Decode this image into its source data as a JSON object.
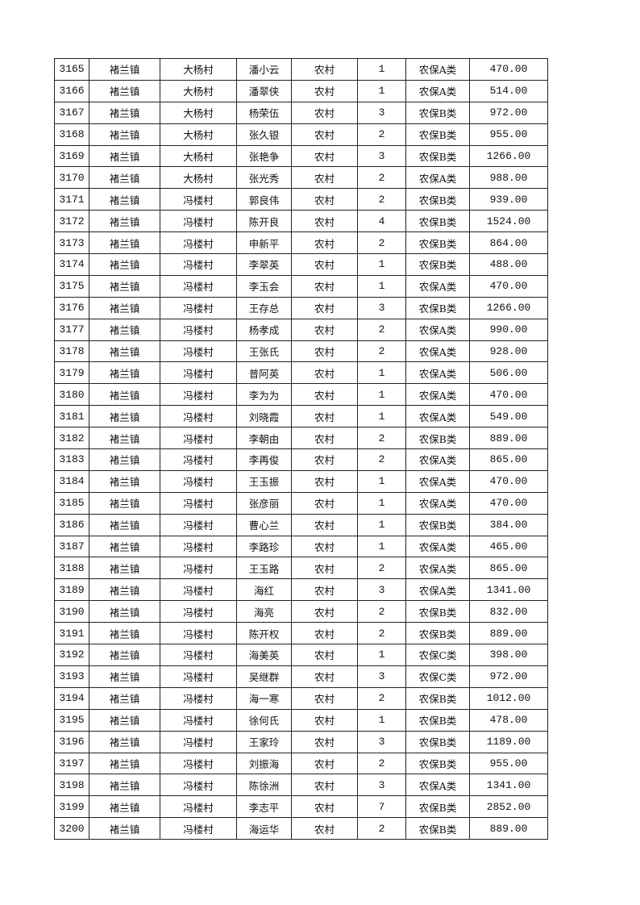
{
  "rows": [
    [
      "3165",
      "褚兰镇",
      "大杨村",
      "潘小云",
      "农村",
      "1",
      "农保A类",
      "470.00"
    ],
    [
      "3166",
      "褚兰镇",
      "大杨村",
      "潘翠侠",
      "农村",
      "1",
      "农保A类",
      "514.00"
    ],
    [
      "3167",
      "褚兰镇",
      "大杨村",
      "杨荣伍",
      "农村",
      "3",
      "农保B类",
      "972.00"
    ],
    [
      "3168",
      "褚兰镇",
      "大杨村",
      "张久银",
      "农村",
      "2",
      "农保B类",
      "955.00"
    ],
    [
      "3169",
      "褚兰镇",
      "大杨村",
      "张艳争",
      "农村",
      "3",
      "农保B类",
      "1266.00"
    ],
    [
      "3170",
      "褚兰镇",
      "大杨村",
      "张光秀",
      "农村",
      "2",
      "农保A类",
      "988.00"
    ],
    [
      "3171",
      "褚兰镇",
      "冯楼村",
      "郭良伟",
      "农村",
      "2",
      "农保B类",
      "939.00"
    ],
    [
      "3172",
      "褚兰镇",
      "冯楼村",
      "陈开良",
      "农村",
      "4",
      "农保B类",
      "1524.00"
    ],
    [
      "3173",
      "褚兰镇",
      "冯楼村",
      "申新平",
      "农村",
      "2",
      "农保B类",
      "864.00"
    ],
    [
      "3174",
      "褚兰镇",
      "冯楼村",
      "李翠英",
      "农村",
      "1",
      "农保B类",
      "488.00"
    ],
    [
      "3175",
      "褚兰镇",
      "冯楼村",
      "李玉会",
      "农村",
      "1",
      "农保A类",
      "470.00"
    ],
    [
      "3176",
      "褚兰镇",
      "冯楼村",
      "王存总",
      "农村",
      "3",
      "农保B类",
      "1266.00"
    ],
    [
      "3177",
      "褚兰镇",
      "冯楼村",
      "杨孝成",
      "农村",
      "2",
      "农保A类",
      "990.00"
    ],
    [
      "3178",
      "褚兰镇",
      "冯楼村",
      "王张氏",
      "农村",
      "2",
      "农保A类",
      "928.00"
    ],
    [
      "3179",
      "褚兰镇",
      "冯楼村",
      "普阿英",
      "农村",
      "1",
      "农保A类",
      "506.00"
    ],
    [
      "3180",
      "褚兰镇",
      "冯楼村",
      "李为为",
      "农村",
      "1",
      "农保A类",
      "470.00"
    ],
    [
      "3181",
      "褚兰镇",
      "冯楼村",
      "刘晓霞",
      "农村",
      "1",
      "农保A类",
      "549.00"
    ],
    [
      "3182",
      "褚兰镇",
      "冯楼村",
      "李朝由",
      "农村",
      "2",
      "农保B类",
      "889.00"
    ],
    [
      "3183",
      "褚兰镇",
      "冯楼村",
      "李再俊",
      "农村",
      "2",
      "农保A类",
      "865.00"
    ],
    [
      "3184",
      "褚兰镇",
      "冯楼村",
      "王玉振",
      "农村",
      "1",
      "农保A类",
      "470.00"
    ],
    [
      "3185",
      "褚兰镇",
      "冯楼村",
      "张彦丽",
      "农村",
      "1",
      "农保A类",
      "470.00"
    ],
    [
      "3186",
      "褚兰镇",
      "冯楼村",
      "曹心兰",
      "农村",
      "1",
      "农保B类",
      "384.00"
    ],
    [
      "3187",
      "褚兰镇",
      "冯楼村",
      "李路珍",
      "农村",
      "1",
      "农保A类",
      "465.00"
    ],
    [
      "3188",
      "褚兰镇",
      "冯楼村",
      "王玉路",
      "农村",
      "2",
      "农保A类",
      "865.00"
    ],
    [
      "3189",
      "褚兰镇",
      "冯楼村",
      "海红",
      "农村",
      "3",
      "农保A类",
      "1341.00"
    ],
    [
      "3190",
      "褚兰镇",
      "冯楼村",
      "海亮",
      "农村",
      "2",
      "农保B类",
      "832.00"
    ],
    [
      "3191",
      "褚兰镇",
      "冯楼村",
      "陈开权",
      "农村",
      "2",
      "农保B类",
      "889.00"
    ],
    [
      "3192",
      "褚兰镇",
      "冯楼村",
      "海美英",
      "农村",
      "1",
      "农保C类",
      "398.00"
    ],
    [
      "3193",
      "褚兰镇",
      "冯楼村",
      "吴继群",
      "农村",
      "3",
      "农保C类",
      "972.00"
    ],
    [
      "3194",
      "褚兰镇",
      "冯楼村",
      "海一寒",
      "农村",
      "2",
      "农保B类",
      "1012.00"
    ],
    [
      "3195",
      "褚兰镇",
      "冯楼村",
      "徐何氏",
      "农村",
      "1",
      "农保B类",
      "478.00"
    ],
    [
      "3196",
      "褚兰镇",
      "冯楼村",
      "王家玲",
      "农村",
      "3",
      "农保B类",
      "1189.00"
    ],
    [
      "3197",
      "褚兰镇",
      "冯楼村",
      "刘振海",
      "农村",
      "2",
      "农保B类",
      "955.00"
    ],
    [
      "3198",
      "褚兰镇",
      "冯楼村",
      "陈徐洲",
      "农村",
      "3",
      "农保A类",
      "1341.00"
    ],
    [
      "3199",
      "褚兰镇",
      "冯楼村",
      "李志平",
      "农村",
      "7",
      "农保B类",
      "2852.00"
    ],
    [
      "3200",
      "褚兰镇",
      "冯楼村",
      "海运华",
      "农村",
      "2",
      "农保B类",
      "889.00"
    ]
  ]
}
